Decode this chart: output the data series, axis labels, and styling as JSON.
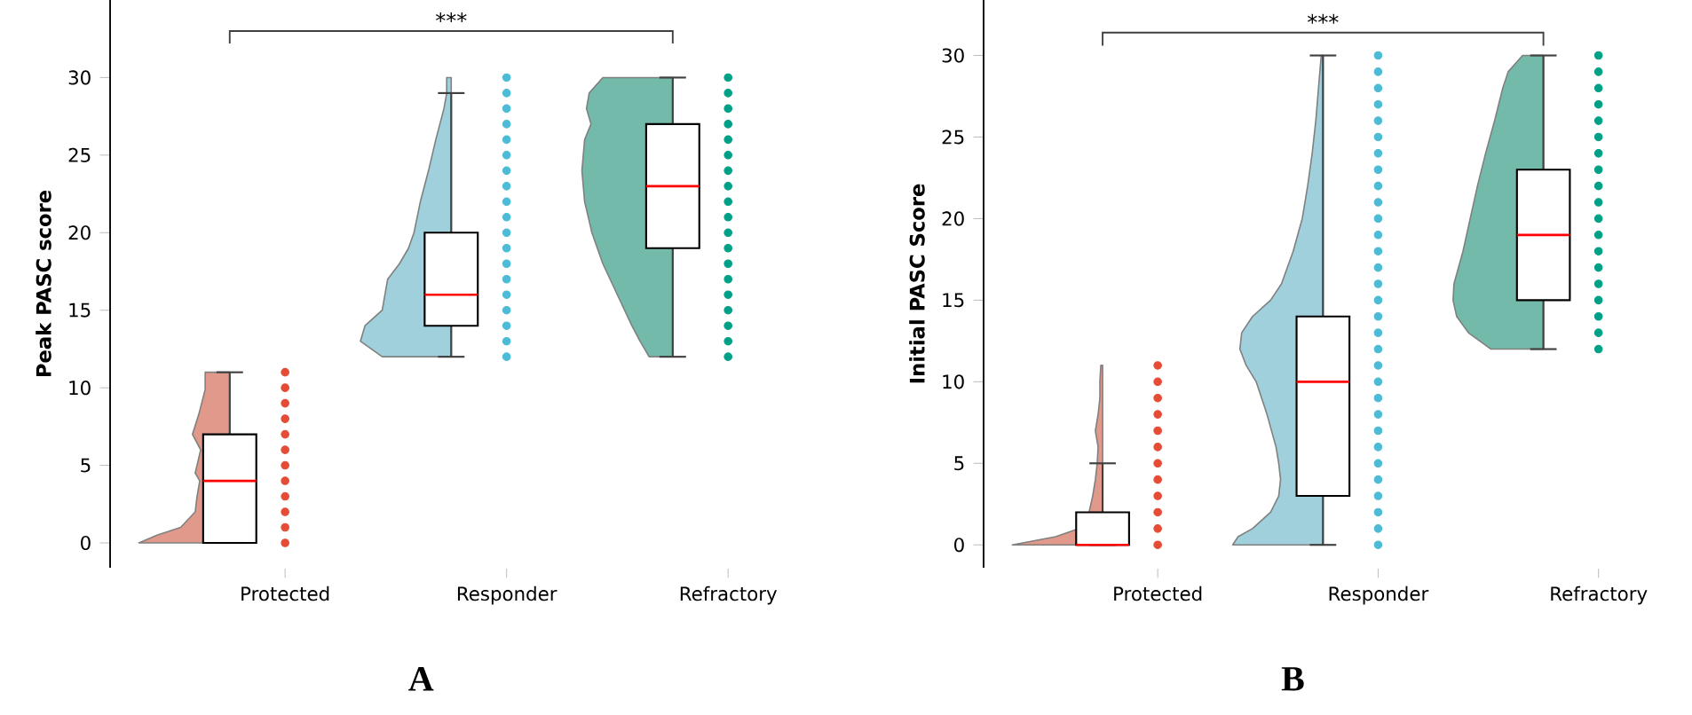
{
  "chart_data": [
    {
      "type": "box",
      "ylabel": "Peak PASC score",
      "categories": [
        "Protected",
        "Responder",
        "Refractory"
      ],
      "ylim": [
        -1.6,
        35
      ],
      "yticks": [
        0,
        5,
        10,
        15,
        20,
        25,
        30
      ],
      "boxes": [
        {
          "low": 0,
          "q1": 0,
          "median": 4,
          "q3": 7,
          "high": 11
        },
        {
          "low": 12,
          "q1": 14,
          "median": 16,
          "q3": 20,
          "high": 29
        },
        {
          "low": 12,
          "q1": 19,
          "median": 23,
          "q3": 27,
          "high": 30
        }
      ],
      "series": [
        {
          "type": "scatter",
          "color": "#e64b35",
          "x": [
            "Protected",
            "Protected",
            "Protected",
            "Protected",
            "Protected",
            "Protected",
            "Protected",
            "Protected",
            "Protected",
            "Protected",
            "Protected",
            "Protected"
          ],
          "values": [
            0,
            1,
            2,
            3,
            4,
            5,
            6,
            7,
            8,
            9,
            10,
            11
          ]
        },
        {
          "type": "scatter",
          "color": "#4dbbd5",
          "x": [
            "Responder",
            "Responder",
            "Responder",
            "Responder",
            "Responder",
            "Responder",
            "Responder",
            "Responder",
            "Responder",
            "Responder",
            "Responder",
            "Responder",
            "Responder",
            "Responder",
            "Responder",
            "Responder",
            "Responder",
            "Responder",
            "Responder"
          ],
          "values": [
            12,
            13,
            14,
            15,
            16,
            17,
            18,
            19,
            20,
            21,
            22,
            23,
            24,
            25,
            26,
            27,
            28,
            29,
            30
          ]
        },
        {
          "type": "scatter",
          "color": "#00a087",
          "x": [
            "Refractory",
            "Refractory",
            "Refractory",
            "Refractory",
            "Refractory",
            "Refractory",
            "Refractory",
            "Refractory",
            "Refractory",
            "Refractory",
            "Refractory",
            "Refractory",
            "Refractory",
            "Refractory",
            "Refractory",
            "Refractory",
            "Refractory",
            "Refractory",
            "Refractory"
          ],
          "values": [
            12,
            13,
            14,
            15,
            16,
            17,
            18,
            19,
            20,
            21,
            22,
            23,
            24,
            25,
            26,
            27,
            28,
            29,
            30
          ]
        }
      ],
      "annotations": [
        "***",
        "A"
      ]
    },
    {
      "type": "box",
      "ylabel": "Initial PASC Score",
      "categories": [
        "Protected",
        "Responder",
        "Refractory"
      ],
      "ylim": [
        -1.4,
        33.4
      ],
      "yticks": [
        0,
        5,
        10,
        15,
        20,
        25,
        30
      ],
      "boxes": [
        {
          "low": 0,
          "q1": 0,
          "median": 0,
          "q3": 2,
          "high": 5
        },
        {
          "low": 0,
          "q1": 3,
          "median": 10,
          "q3": 14,
          "high": 30
        },
        {
          "low": 12,
          "q1": 15,
          "median": 19,
          "q3": 23,
          "high": 30
        }
      ],
      "series": [
        {
          "type": "scatter",
          "color": "#e64b35",
          "x": [
            "Protected",
            "Protected",
            "Protected",
            "Protected",
            "Protected",
            "Protected",
            "Protected",
            "Protected",
            "Protected",
            "Protected",
            "Protected",
            "Protected"
          ],
          "values": [
            0,
            1,
            2,
            3,
            4,
            5,
            6,
            7,
            8,
            9,
            10,
            11
          ]
        },
        {
          "type": "scatter",
          "color": "#4dbbd5",
          "x": [
            "Responder",
            "Responder",
            "Responder",
            "Responder",
            "Responder",
            "Responder",
            "Responder",
            "Responder",
            "Responder",
            "Responder",
            "Responder",
            "Responder",
            "Responder",
            "Responder",
            "Responder",
            "Responder",
            "Responder",
            "Responder",
            "Responder",
            "Responder",
            "Responder",
            "Responder",
            "Responder",
            "Responder",
            "Responder",
            "Responder",
            "Responder",
            "Responder",
            "Responder",
            "Responder",
            "Responder"
          ],
          "values": [
            0,
            1,
            2,
            3,
            4,
            5,
            6,
            7,
            8,
            9,
            10,
            11,
            12,
            13,
            14,
            15,
            16,
            17,
            18,
            19,
            20,
            21,
            22,
            23,
            24,
            25,
            26,
            27,
            28,
            29,
            30
          ]
        },
        {
          "type": "scatter",
          "color": "#00a087",
          "x": [
            "Refractory",
            "Refractory",
            "Refractory",
            "Refractory",
            "Refractory",
            "Refractory",
            "Refractory",
            "Refractory",
            "Refractory",
            "Refractory",
            "Refractory",
            "Refractory",
            "Refractory",
            "Refractory",
            "Refractory",
            "Refractory",
            "Refractory",
            "Refractory",
            "Refractory"
          ],
          "values": [
            12,
            13,
            14,
            15,
            16,
            17,
            18,
            19,
            20,
            21,
            22,
            23,
            24,
            25,
            26,
            27,
            28,
            29,
            30
          ]
        }
      ],
      "annotations": [
        "***",
        "B"
      ]
    }
  ]
}
